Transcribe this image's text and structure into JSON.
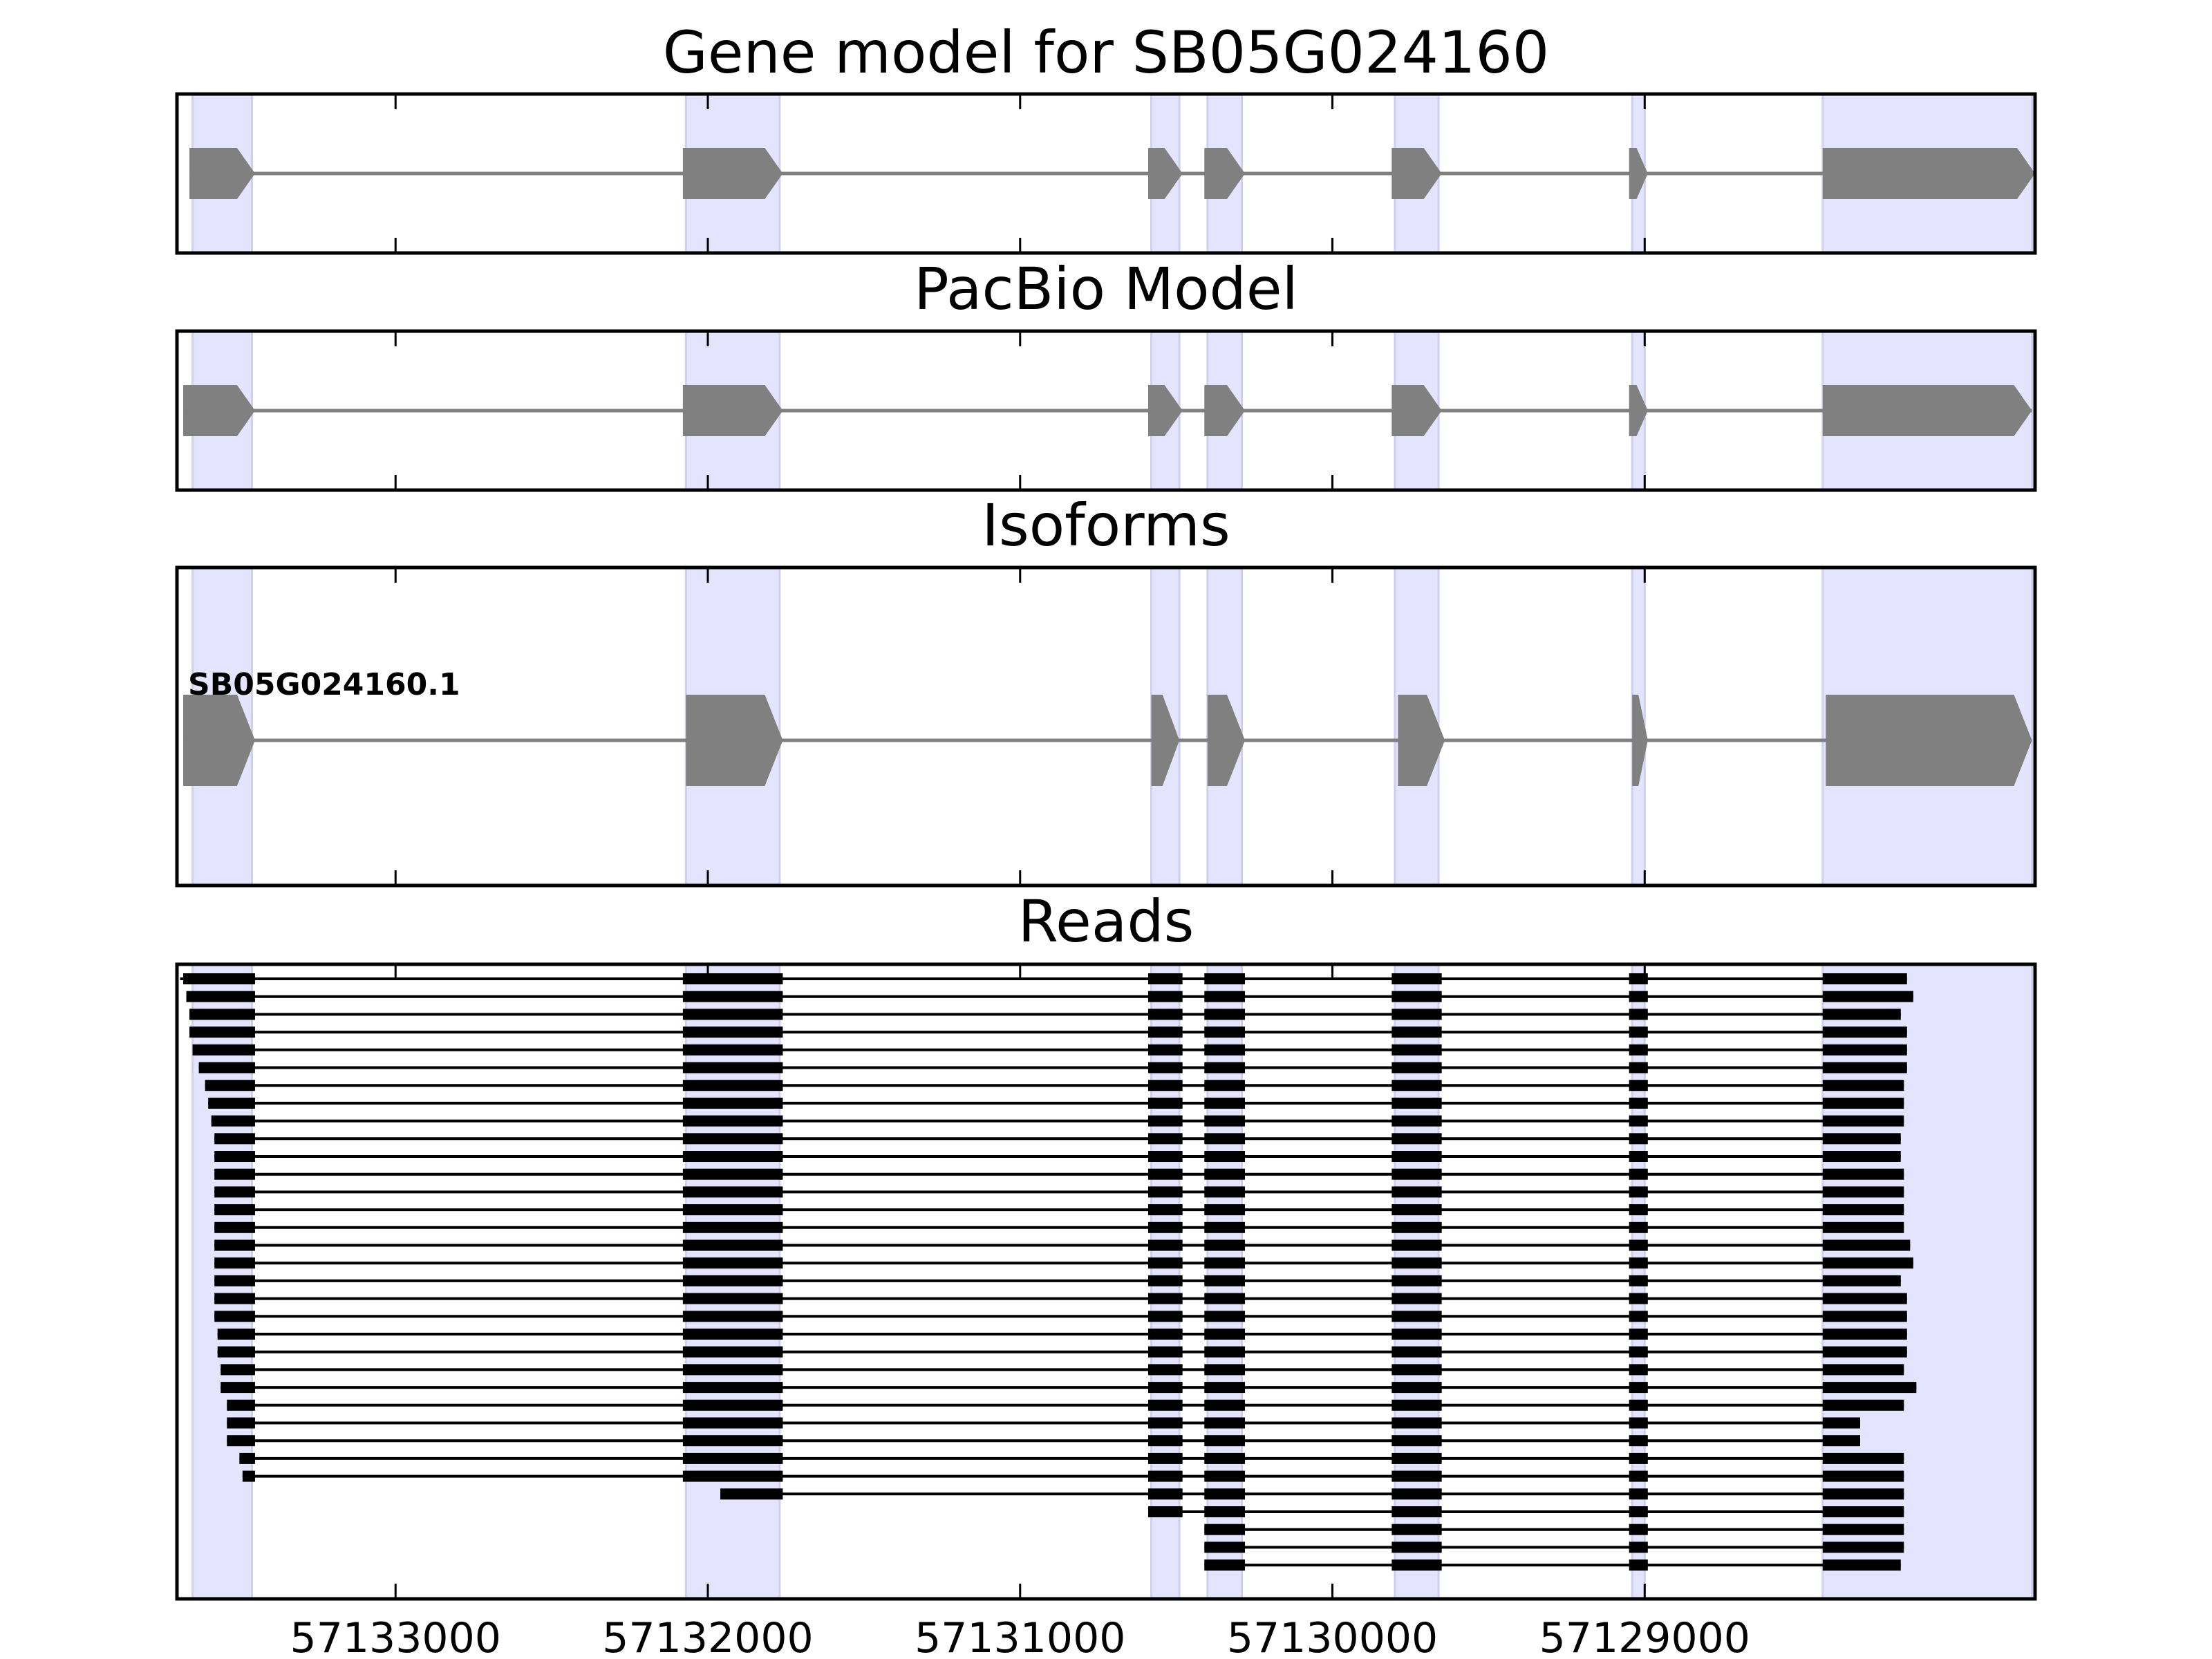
{
  "chart_data": {
    "type": "gene-track",
    "x_range": [
      57133700,
      57127750
    ],
    "x_reversed": true,
    "ticks": [
      57133000,
      57132000,
      57131000,
      57130000,
      57129000
    ],
    "tick_labels": [
      "57133000",
      "57132000",
      "57131000",
      "57130000",
      "57129000"
    ],
    "highlight_color": "#e4e4ff",
    "feature_color": "#808080",
    "read_color": "#000000",
    "highlight_regions": [
      [
        57133650,
        57133460
      ],
      [
        57132070,
        57131770
      ],
      [
        57130580,
        57130490
      ],
      [
        57130400,
        57130290
      ],
      [
        57129800,
        57129660
      ],
      [
        57129040,
        57129000
      ],
      [
        57128430,
        57127760
      ]
    ],
    "panels": [
      {
        "title": "Gene model for SB05G024160",
        "exons": [
          [
            57133660,
            57133450
          ],
          [
            57132080,
            57131760
          ],
          [
            57130590,
            57130480
          ],
          [
            57130410,
            57130280
          ],
          [
            57129810,
            57129650
          ],
          [
            57129050,
            57128990
          ],
          [
            57128430,
            57127750
          ]
        ]
      },
      {
        "title": "PacBio Model",
        "exons": [
          [
            57133680,
            57133450
          ],
          [
            57132080,
            57131760
          ],
          [
            57130590,
            57130480
          ],
          [
            57130410,
            57130280
          ],
          [
            57129810,
            57129650
          ],
          [
            57129050,
            57128990
          ],
          [
            57128430,
            57127760
          ]
        ]
      },
      {
        "title": "Isoforms",
        "isoform_label": "SB05G024160.1",
        "exons": [
          [
            57133680,
            57133450
          ],
          [
            57132070,
            57131760
          ],
          [
            57130580,
            57130490
          ],
          [
            57130400,
            57130280
          ],
          [
            57129790,
            57129640
          ],
          [
            57129040,
            57128990
          ],
          [
            57128420,
            57127760
          ]
        ]
      },
      {
        "title": "Reads",
        "reads": [
          {
            "start": 57133690,
            "end": 57128160
          },
          {
            "start": 57133670,
            "end": 57128140
          },
          {
            "start": 57133660,
            "end": 57128180
          },
          {
            "start": 57133660,
            "end": 57128160
          },
          {
            "start": 57133650,
            "end": 57128160
          },
          {
            "start": 57133630,
            "end": 57128160
          },
          {
            "start": 57133610,
            "end": 57128170
          },
          {
            "start": 57133600,
            "end": 57128170
          },
          {
            "start": 57133590,
            "end": 57128170
          },
          {
            "start": 57133580,
            "end": 57128180
          },
          {
            "start": 57133580,
            "end": 57128180
          },
          {
            "start": 57133580,
            "end": 57128170
          },
          {
            "start": 57133580,
            "end": 57128170
          },
          {
            "start": 57133580,
            "end": 57128170
          },
          {
            "start": 57133580,
            "end": 57128170
          },
          {
            "start": 57133580,
            "end": 57128150
          },
          {
            "start": 57133580,
            "end": 57128140
          },
          {
            "start": 57133580,
            "end": 57128180
          },
          {
            "start": 57133580,
            "end": 57128160
          },
          {
            "start": 57133580,
            "end": 57128160
          },
          {
            "start": 57133570,
            "end": 57128160
          },
          {
            "start": 57133570,
            "end": 57128160
          },
          {
            "start": 57133560,
            "end": 57128170
          },
          {
            "start": 57133560,
            "end": 57128130
          },
          {
            "start": 57133540,
            "end": 57128170
          },
          {
            "start": 57133540,
            "end": 57128310
          },
          {
            "start": 57133540,
            "end": 57128310
          },
          {
            "start": 57133500,
            "end": 57128170
          },
          {
            "start": 57133490,
            "end": 57128170
          },
          {
            "start": 57131960,
            "end": 57128170
          },
          {
            "start": 57130590,
            "end": 57128170
          },
          {
            "start": 57130410,
            "end": 57128170
          },
          {
            "start": 57130410,
            "end": 57128170
          },
          {
            "start": 57130410,
            "end": 57128180
          }
        ]
      }
    ]
  }
}
